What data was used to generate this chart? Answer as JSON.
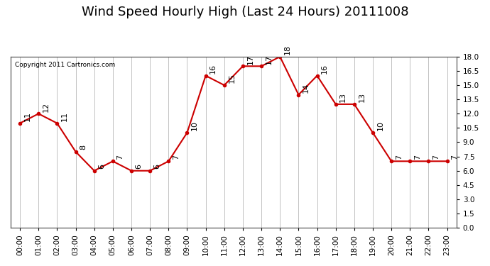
{
  "title": "Wind Speed Hourly High (Last 24 Hours) 20111008",
  "copyright_text": "Copyright 2011 Cartronics.com",
  "hours": [
    "00:00",
    "01:00",
    "02:00",
    "03:00",
    "04:00",
    "05:00",
    "06:00",
    "07:00",
    "08:00",
    "09:00",
    "10:00",
    "11:00",
    "12:00",
    "13:00",
    "14:00",
    "15:00",
    "16:00",
    "17:00",
    "18:00",
    "19:00",
    "20:00",
    "21:00",
    "22:00",
    "23:00"
  ],
  "values": [
    11,
    12,
    11,
    8,
    6,
    7,
    6,
    6,
    7,
    10,
    16,
    15,
    17,
    17,
    18,
    14,
    16,
    13,
    13,
    10,
    7,
    7,
    7,
    7
  ],
  "line_color": "#cc0000",
  "marker_color": "#cc0000",
  "bg_color": "#ffffff",
  "plot_bg_color": "#ffffff",
  "grid_color": "#aaaaaa",
  "title_fontsize": 13,
  "label_fontsize": 7.5,
  "annotation_fontsize": 8,
  "ylim_min": 0.0,
  "ylim_max": 18.0,
  "yticks": [
    0.0,
    1.5,
    3.0,
    4.5,
    6.0,
    7.5,
    9.0,
    10.5,
    12.0,
    13.5,
    15.0,
    16.5,
    18.0
  ]
}
